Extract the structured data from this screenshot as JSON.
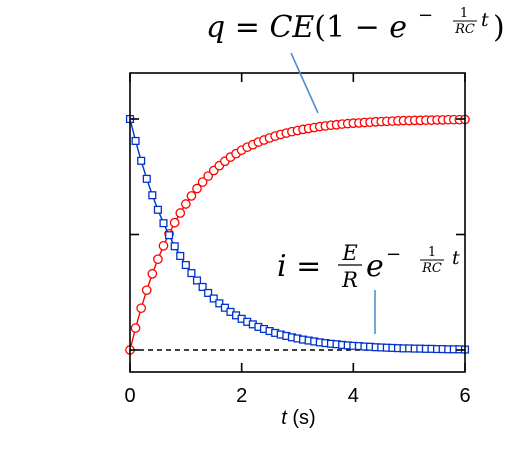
{
  "chart_data": {
    "type": "scatter",
    "xlabel": {
      "var": "t",
      "unit": " (s)"
    },
    "ylabel": "",
    "xlim": [
      0,
      6
    ],
    "ylim": [
      0,
      1.1
    ],
    "xticks": [
      0,
      2,
      4,
      6
    ],
    "xtick_labels": [
      "0",
      "2",
      "4",
      "6"
    ],
    "yticks": [
      0,
      0.5,
      1
    ],
    "ytick_labels": [],
    "grid": false,
    "baseline_dashed_y": 0,
    "time_constant": 1,
    "sample_step": 0.1,
    "series": [
      {
        "name": "q",
        "marker": "circle",
        "color": "#ff0000",
        "fill": "#ffffff",
        "formula": "1 - exp(-t)",
        "x": [
          0.0,
          0.1,
          0.2,
          0.3,
          0.4,
          0.5,
          0.6,
          0.7,
          0.8,
          0.9,
          1.0,
          1.1,
          1.2,
          1.3,
          1.4,
          1.5,
          1.6,
          1.7,
          1.8,
          1.9,
          2.0,
          2.1,
          2.2,
          2.3,
          2.4,
          2.5,
          2.6,
          2.7,
          2.8,
          2.9,
          3.0,
          3.1,
          3.2,
          3.3,
          3.4,
          3.5,
          3.6,
          3.7,
          3.8,
          3.9,
          4.0,
          4.1,
          4.2,
          4.3,
          4.4,
          4.5,
          4.6,
          4.7,
          4.8,
          4.9,
          5.0,
          5.1,
          5.2,
          5.3,
          5.4,
          5.5,
          5.6,
          5.7,
          5.8,
          5.9,
          6.0
        ],
        "values": [
          0.0,
          0.095,
          0.181,
          0.259,
          0.33,
          0.393,
          0.451,
          0.503,
          0.551,
          0.593,
          0.632,
          0.667,
          0.699,
          0.727,
          0.753,
          0.777,
          0.798,
          0.817,
          0.835,
          0.85,
          0.865,
          0.878,
          0.889,
          0.9,
          0.909,
          0.918,
          0.926,
          0.933,
          0.939,
          0.945,
          0.95,
          0.955,
          0.959,
          0.963,
          0.967,
          0.97,
          0.973,
          0.975,
          0.978,
          0.98,
          0.982,
          0.983,
          0.985,
          0.986,
          0.988,
          0.989,
          0.99,
          0.991,
          0.992,
          0.993,
          0.993,
          0.994,
          0.994,
          0.995,
          0.995,
          0.996,
          0.996,
          0.997,
          0.997,
          0.997,
          0.998
        ]
      },
      {
        "name": "i",
        "marker": "square",
        "color": "#0033cc",
        "fill": "#ffffff",
        "formula": "exp(-t)",
        "x": [
          0.0,
          0.1,
          0.2,
          0.3,
          0.4,
          0.5,
          0.6,
          0.7,
          0.8,
          0.9,
          1.0,
          1.1,
          1.2,
          1.3,
          1.4,
          1.5,
          1.6,
          1.7,
          1.8,
          1.9,
          2.0,
          2.1,
          2.2,
          2.3,
          2.4,
          2.5,
          2.6,
          2.7,
          2.8,
          2.9,
          3.0,
          3.1,
          3.2,
          3.3,
          3.4,
          3.5,
          3.6,
          3.7,
          3.8,
          3.9,
          4.0,
          4.1,
          4.2,
          4.3,
          4.4,
          4.5,
          4.6,
          4.7,
          4.8,
          4.9,
          5.0,
          5.1,
          5.2,
          5.3,
          5.4,
          5.5,
          5.6,
          5.7,
          5.8,
          5.9,
          6.0
        ],
        "values": [
          1.0,
          0.905,
          0.819,
          0.741,
          0.67,
          0.607,
          0.549,
          0.497,
          0.449,
          0.407,
          0.368,
          0.333,
          0.301,
          0.273,
          0.247,
          0.223,
          0.202,
          0.183,
          0.165,
          0.15,
          0.135,
          0.122,
          0.111,
          0.1,
          0.091,
          0.082,
          0.074,
          0.067,
          0.061,
          0.055,
          0.05,
          0.045,
          0.041,
          0.037,
          0.033,
          0.03,
          0.027,
          0.025,
          0.022,
          0.02,
          0.018,
          0.017,
          0.015,
          0.014,
          0.012,
          0.011,
          0.01,
          0.009,
          0.008,
          0.007,
          0.007,
          0.006,
          0.006,
          0.005,
          0.005,
          0.004,
          0.004,
          0.003,
          0.003,
          0.003,
          0.002
        ]
      }
    ],
    "annotations": [
      {
        "series": "q",
        "parts": [
          "q",
          " = ",
          "CE",
          "(1 − ",
          "e",
          "−",
          "1",
          "RC",
          "t",
          ")"
        ]
      },
      {
        "series": "i",
        "parts": [
          "i",
          " = ",
          "E",
          "R",
          "e",
          "−",
          "1",
          "RC",
          "t"
        ]
      }
    ]
  }
}
